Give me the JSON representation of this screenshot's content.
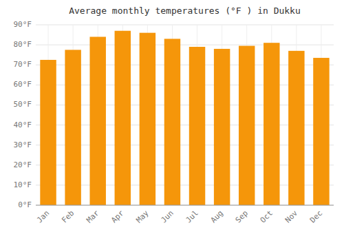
{
  "chart_data": {
    "type": "bar",
    "title": "Average monthly temperatures (°F ) in Dukku",
    "categories": [
      "Jan",
      "Feb",
      "Mar",
      "Apr",
      "May",
      "Jun",
      "Jul",
      "Aug",
      "Sep",
      "Oct",
      "Nov",
      "Dec"
    ],
    "values": [
      72.5,
      77.5,
      84.0,
      87.0,
      86.0,
      83.0,
      79.0,
      78.0,
      79.5,
      81.0,
      77.0,
      73.5
    ],
    "color": "#F5960A",
    "ylim": [
      0,
      90
    ],
    "yticks": [
      {
        "value": 0,
        "label": "0°F"
      },
      {
        "value": 10,
        "label": "10°F"
      },
      {
        "value": 20,
        "label": "20°F"
      },
      {
        "value": 30,
        "label": "30°F"
      },
      {
        "value": 40,
        "label": "40°F"
      },
      {
        "value": 50,
        "label": "50°F"
      },
      {
        "value": 60,
        "label": "60°F"
      },
      {
        "value": 70,
        "label": "70°F"
      },
      {
        "value": 80,
        "label": "80°F"
      },
      {
        "value": 90,
        "label": "90°F"
      }
    ],
    "grid": true
  }
}
